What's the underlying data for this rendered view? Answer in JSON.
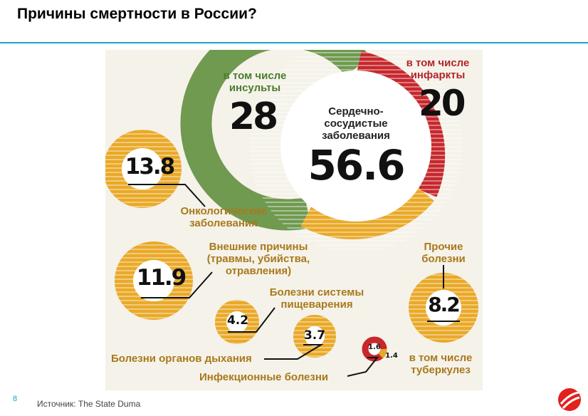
{
  "slide": {
    "title": "Причины смертности в России?",
    "page_number": "8",
    "source": "Источник: The State Duma"
  },
  "colors": {
    "accent": "#1ba3c6",
    "gold": "#e9a928",
    "green": "#6f9a50",
    "red": "#c6282d",
    "logo": "#e2201c"
  },
  "icons": {
    "logo": "brand-logo-icon"
  },
  "figure": {
    "cardio": {
      "label_line1": "Сердечно-",
      "label_line2": "сосудистые",
      "label_line3": "заболевания",
      "value": "56.6",
      "strokes": {
        "line1": "в том числе",
        "line2": "инсульты",
        "value": "28"
      },
      "infarcts": {
        "line1": "в том числе",
        "line2": "инфаркты",
        "value": "20"
      }
    },
    "oncology": {
      "value": "13.8",
      "line1": "Онкологические",
      "line2": "заболевания"
    },
    "external": {
      "value": "11.9",
      "line1": "Внешние причины",
      "line2": "(травмы, убийства,",
      "line3": "отравления)"
    },
    "digestive": {
      "value": "4.2",
      "line1": "Болезни системы",
      "line2": "пищеварения"
    },
    "respiratory": {
      "value": "3.7",
      "label": "Болезни органов дыхания"
    },
    "infectious": {
      "value": "1.6",
      "label": "Инфекционные болезни",
      "tb": {
        "value": "1.4",
        "line1": "в том числе",
        "line2": "туберкулез"
      }
    },
    "other": {
      "value": "8.2",
      "line1": "Прочие",
      "line2": "болезни"
    }
  }
}
